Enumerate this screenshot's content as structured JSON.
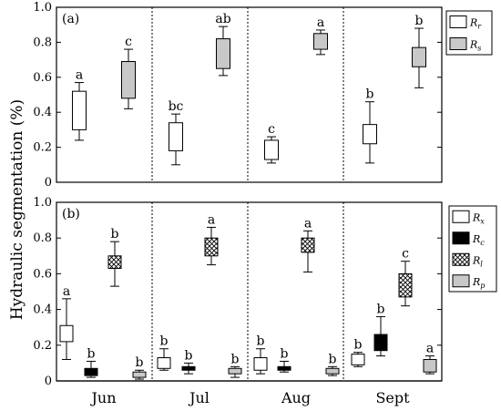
{
  "chart_data": {
    "type": "box",
    "ylabel": "Hydraulic segmentation (%)",
    "months": [
      "Jun",
      "Jul",
      "Aug",
      "Sept"
    ],
    "panels": [
      {
        "tag": "(a)",
        "ylim": [
          0,
          1.0
        ],
        "yticks": [
          "0",
          "0.2",
          "0.4",
          "0.6",
          "0.8",
          "1.0"
        ],
        "ytick_values": [
          0,
          0.2,
          0.4,
          0.6,
          0.8,
          1.0
        ],
        "legend": [
          {
            "base": "R",
            "sub": "r",
            "fill": "#ffffff"
          },
          {
            "base": "R",
            "sub": "s",
            "fill": "#c8c8c8"
          }
        ],
        "series": [
          {
            "fill": "#ffffff",
            "boxes": [
              {
                "month": "Jun",
                "min": 0.24,
                "q1": 0.3,
                "q3": 0.52,
                "max": 0.57,
                "sig": "a"
              },
              {
                "month": "Jul",
                "min": 0.1,
                "q1": 0.18,
                "q3": 0.34,
                "max": 0.39,
                "sig": "bc"
              },
              {
                "month": "Aug",
                "min": 0.11,
                "q1": 0.13,
                "q3": 0.24,
                "max": 0.26,
                "sig": "c"
              },
              {
                "month": "Sept",
                "min": 0.11,
                "q1": 0.22,
                "q3": 0.33,
                "max": 0.46,
                "sig": "b"
              }
            ]
          },
          {
            "fill": "#c8c8c8",
            "boxes": [
              {
                "month": "Jun",
                "min": 0.42,
                "q1": 0.48,
                "q3": 0.69,
                "max": 0.76,
                "sig": "c"
              },
              {
                "month": "Jul",
                "min": 0.61,
                "q1": 0.65,
                "q3": 0.82,
                "max": 0.89,
                "sig": "ab"
              },
              {
                "month": "Aug",
                "min": 0.73,
                "q1": 0.76,
                "q3": 0.85,
                "max": 0.87,
                "sig": "a"
              },
              {
                "month": "Sept",
                "min": 0.54,
                "q1": 0.66,
                "q3": 0.77,
                "max": 0.88,
                "sig": "b"
              }
            ]
          }
        ]
      },
      {
        "tag": "(b)",
        "ylim": [
          0,
          1.0
        ],
        "yticks": [
          "0",
          "0.2",
          "0.4",
          "0.6",
          "0.8",
          "1.0"
        ],
        "ytick_values": [
          0,
          0.2,
          0.4,
          0.6,
          0.8,
          1.0
        ],
        "legend": [
          {
            "base": "R",
            "sub": "x",
            "fill": "#ffffff"
          },
          {
            "base": "R",
            "sub": "c",
            "fill": "#000000"
          },
          {
            "base": "R",
            "sub": "l",
            "fill": "cross"
          },
          {
            "base": "R",
            "sub": "p",
            "fill": "#c8c8c8"
          }
        ],
        "series": [
          {
            "fill": "#ffffff",
            "boxes": [
              {
                "month": "Jun",
                "min": 0.12,
                "q1": 0.22,
                "q3": 0.31,
                "max": 0.46,
                "sig": "a"
              },
              {
                "month": "Jul",
                "min": 0.06,
                "q1": 0.07,
                "q3": 0.13,
                "max": 0.18,
                "sig": "b"
              },
              {
                "month": "Aug",
                "min": 0.04,
                "q1": 0.06,
                "q3": 0.13,
                "max": 0.18,
                "sig": "b"
              },
              {
                "month": "Sept",
                "min": 0.08,
                "q1": 0.09,
                "q3": 0.15,
                "max": 0.16,
                "sig": "b"
              }
            ]
          },
          {
            "fill": "#000000",
            "boxes": [
              {
                "month": "Jun",
                "min": 0.02,
                "q1": 0.03,
                "q3": 0.07,
                "max": 0.11,
                "sig": "b"
              },
              {
                "month": "Jul",
                "min": 0.04,
                "q1": 0.06,
                "q3": 0.08,
                "max": 0.1,
                "sig": "b"
              },
              {
                "month": "Aug",
                "min": 0.05,
                "q1": 0.06,
                "q3": 0.08,
                "max": 0.11,
                "sig": "b"
              },
              {
                "month": "Sept",
                "min": 0.14,
                "q1": 0.17,
                "q3": 0.26,
                "max": 0.36,
                "sig": "b"
              }
            ]
          },
          {
            "fill": "cross",
            "boxes": [
              {
                "month": "Jun",
                "min": 0.53,
                "q1": 0.63,
                "q3": 0.7,
                "max": 0.78,
                "sig": "b"
              },
              {
                "month": "Jul",
                "min": 0.65,
                "q1": 0.7,
                "q3": 0.8,
                "max": 0.86,
                "sig": "a"
              },
              {
                "month": "Aug",
                "min": 0.61,
                "q1": 0.72,
                "q3": 0.8,
                "max": 0.84,
                "sig": "a"
              },
              {
                "month": "Sept",
                "min": 0.42,
                "q1": 0.47,
                "q3": 0.6,
                "max": 0.67,
                "sig": "c"
              }
            ]
          },
          {
            "fill": "#c8c8c8",
            "boxes": [
              {
                "month": "Jun",
                "min": 0.01,
                "q1": 0.02,
                "q3": 0.05,
                "max": 0.06,
                "sig": "b"
              },
              {
                "month": "Jul",
                "min": 0.02,
                "q1": 0.04,
                "q3": 0.07,
                "max": 0.08,
                "sig": "b"
              },
              {
                "month": "Aug",
                "min": 0.03,
                "q1": 0.04,
                "q3": 0.07,
                "max": 0.08,
                "sig": "b"
              },
              {
                "month": "Sept",
                "min": 0.04,
                "q1": 0.05,
                "q3": 0.12,
                "max": 0.14,
                "sig": "a"
              }
            ]
          }
        ]
      }
    ]
  }
}
